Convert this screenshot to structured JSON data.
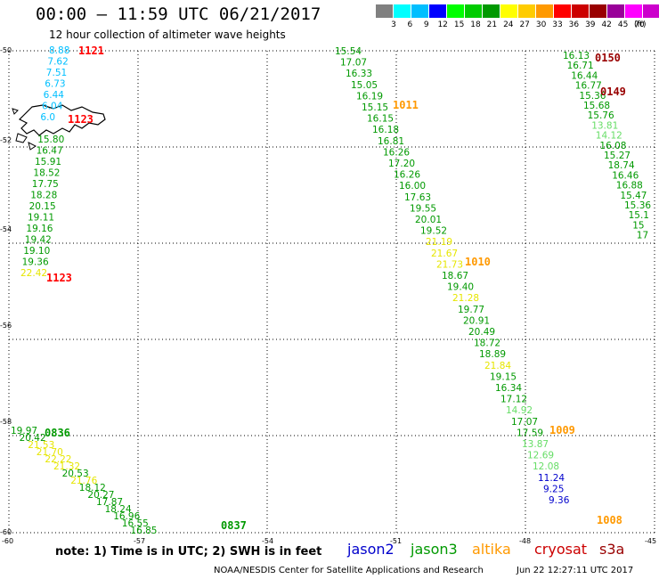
{
  "header": {
    "title": "00:00 – 11:59 UTC 06/21/2017",
    "subtitle": "12 hour collection of altimeter wave heights"
  },
  "legend": {
    "colors": [
      "#808080",
      "#00ffff",
      "#00bfff",
      "#0000ff",
      "#00ff00",
      "#00cc00",
      "#009900",
      "#ffff00",
      "#ffcc00",
      "#ff9900",
      "#ff0000",
      "#cc0000",
      "#990000",
      "#990099",
      "#ff00ff",
      "#cc00cc",
      "#000000"
    ],
    "labels": [
      "3",
      "6",
      "9",
      "12",
      "15",
      "18",
      "21",
      "24",
      "27",
      "30",
      "33",
      "36",
      "39",
      "42",
      "45",
      "70"
    ],
    "unit": "(ft)"
  },
  "axes": {
    "x_ticks": [
      "-60",
      "-57",
      "-54",
      "-51",
      "-48",
      "-45"
    ],
    "y_ticks": [
      "-50",
      "-52",
      "-54",
      "-56",
      "-58",
      "-60"
    ],
    "xlim": [
      -60,
      -45
    ],
    "ylim": [
      -60,
      -50
    ]
  },
  "tracks": [
    {
      "points": [
        {
          "v": "8.88",
          "c": "#00bfff"
        },
        {
          "v": "7.62",
          "c": "#00bfff"
        },
        {
          "v": "7.51",
          "c": "#00bfff"
        },
        {
          "v": "6.73",
          "c": "#00bfff"
        },
        {
          "v": "6.44",
          "c": "#00bfff"
        },
        {
          "v": "6.04",
          "c": "#00bfff"
        },
        {
          "v": "6.0",
          "c": "#00bfff"
        },
        {
          "v": "",
          "c": "#000"
        },
        {
          "v": "15.80",
          "c": "#009900"
        },
        {
          "v": "16.47",
          "c": "#009900"
        },
        {
          "v": "15.91",
          "c": "#009900"
        },
        {
          "v": "18.52",
          "c": "#009900"
        },
        {
          "v": "17.75",
          "c": "#009900"
        },
        {
          "v": "18.28",
          "c": "#009900"
        },
        {
          "v": "20.15",
          "c": "#009900"
        },
        {
          "v": "19.11",
          "c": "#009900"
        },
        {
          "v": "19.16",
          "c": "#009900"
        },
        {
          "v": "19.42",
          "c": "#009900"
        },
        {
          "v": "19.10",
          "c": "#009900"
        },
        {
          "v": "19.36",
          "c": "#009900"
        },
        {
          "v": "22.42",
          "c": "#e6e600"
        }
      ]
    },
    {
      "points": [
        {
          "v": "15.54",
          "c": "#009900"
        },
        {
          "v": "17.07",
          "c": "#009900"
        },
        {
          "v": "16.33",
          "c": "#009900"
        },
        {
          "v": "15.05",
          "c": "#009900"
        },
        {
          "v": "16.19",
          "c": "#009900"
        },
        {
          "v": "15.15",
          "c": "#009900"
        },
        {
          "v": "16.15",
          "c": "#009900"
        },
        {
          "v": "16.18",
          "c": "#009900"
        },
        {
          "v": "16.81",
          "c": "#009900"
        },
        {
          "v": "16.26",
          "c": "#009900"
        },
        {
          "v": "17.20",
          "c": "#009900"
        },
        {
          "v": "16.26",
          "c": "#009900"
        },
        {
          "v": "16.00",
          "c": "#009900"
        },
        {
          "v": "17.63",
          "c": "#009900"
        },
        {
          "v": "19.55",
          "c": "#009900"
        },
        {
          "v": "20.01",
          "c": "#009900"
        },
        {
          "v": "19.52",
          "c": "#009900"
        },
        {
          "v": "21.19",
          "c": "#e6e600"
        },
        {
          "v": "21.67",
          "c": "#e6e600"
        },
        {
          "v": "21.73",
          "c": "#e6e600"
        },
        {
          "v": "18.67",
          "c": "#009900"
        },
        {
          "v": "19.40",
          "c": "#009900"
        },
        {
          "v": "21.28",
          "c": "#e6e600"
        },
        {
          "v": "19.77",
          "c": "#009900"
        },
        {
          "v": "20.91",
          "c": "#009900"
        },
        {
          "v": "20.49",
          "c": "#009900"
        },
        {
          "v": "18.72",
          "c": "#009900"
        },
        {
          "v": "18.89",
          "c": "#009900"
        },
        {
          "v": "21.84",
          "c": "#e6e600"
        },
        {
          "v": "19.15",
          "c": "#009900"
        },
        {
          "v": "16.34",
          "c": "#009900"
        },
        {
          "v": "17.12",
          "c": "#009900"
        },
        {
          "v": "14.92",
          "c": "#66dd66"
        },
        {
          "v": "17.07",
          "c": "#009900"
        },
        {
          "v": "17.59",
          "c": "#009900"
        },
        {
          "v": "13.87",
          "c": "#66dd66"
        },
        {
          "v": "12.69",
          "c": "#66dd66"
        },
        {
          "v": "12.08",
          "c": "#66dd66"
        },
        {
          "v": "11.24",
          "c": "#0000cc"
        },
        {
          "v": "9.25",
          "c": "#0000cc"
        },
        {
          "v": "9.36",
          "c": "#0000cc"
        }
      ]
    },
    {
      "points": [
        {
          "v": "16.13",
          "c": "#009900"
        },
        {
          "v": "16.71",
          "c": "#009900"
        },
        {
          "v": "16.44",
          "c": "#009900"
        },
        {
          "v": "16.77",
          "c": "#009900"
        },
        {
          "v": "15.36",
          "c": "#009900"
        },
        {
          "v": "15.68",
          "c": "#009900"
        },
        {
          "v": "15.76",
          "c": "#009900"
        },
        {
          "v": "13.81",
          "c": "#66dd66"
        },
        {
          "v": "14.12",
          "c": "#66dd66"
        },
        {
          "v": "16.08",
          "c": "#009900"
        },
        {
          "v": "15.27",
          "c": "#009900"
        },
        {
          "v": "18.74",
          "c": "#009900"
        },
        {
          "v": "16.46",
          "c": "#009900"
        },
        {
          "v": "16.88",
          "c": "#009900"
        },
        {
          "v": "15.47",
          "c": "#009900"
        },
        {
          "v": "15.36",
          "c": "#009900"
        },
        {
          "v": "15.1",
          "c": "#009900"
        },
        {
          "v": "15",
          "c": "#009900"
        },
        {
          "v": "17",
          "c": "#009900"
        }
      ]
    },
    {
      "points": [
        {
          "v": "19.97",
          "c": "#009900"
        },
        {
          "v": "20.42",
          "c": "#009900"
        },
        {
          "v": "21.53",
          "c": "#e6e600"
        },
        {
          "v": "21.70",
          "c": "#e6e600"
        },
        {
          "v": "22.22",
          "c": "#e6e600"
        },
        {
          "v": "21.32",
          "c": "#e6e600"
        },
        {
          "v": "20.53",
          "c": "#009900"
        },
        {
          "v": "21.76",
          "c": "#e6e600"
        },
        {
          "v": "18.12",
          "c": "#009900"
        },
        {
          "v": "20.27",
          "c": "#009900"
        },
        {
          "v": "17.87",
          "c": "#009900"
        },
        {
          "v": "18.24",
          "c": "#009900"
        },
        {
          "v": "16.96",
          "c": "#009900"
        },
        {
          "v": "16.55",
          "c": "#009900"
        },
        {
          "v": "16.85",
          "c": "#009900"
        }
      ]
    }
  ],
  "time_labels": [
    {
      "t": "1121",
      "c": "#ff0000"
    },
    {
      "t": "1123",
      "c": "#ff0000"
    },
    {
      "t": "1123",
      "c": "#ff0000"
    },
    {
      "t": "1011",
      "c": "#ff9900"
    },
    {
      "t": "1010",
      "c": "#ff9900"
    },
    {
      "t": "1009",
      "c": "#ff9900"
    },
    {
      "t": "1008",
      "c": "#ff9900"
    },
    {
      "t": "0150",
      "c": "#990000"
    },
    {
      "t": "0149",
      "c": "#990000"
    },
    {
      "t": "0836",
      "c": "#009900"
    },
    {
      "t": "0837",
      "c": "#009900"
    }
  ],
  "note": "note: 1) Time is in UTC; 2) SWH is in feet",
  "satellites": [
    {
      "name": "jason2",
      "c": "#0000cc"
    },
    {
      "name": "jason3",
      "c": "#009900"
    },
    {
      "name": "altika",
      "c": "#ff9900"
    },
    {
      "name": "cryosat",
      "c": "#cc0000"
    },
    {
      "name": "s3a",
      "c": "#990000"
    }
  ],
  "footer": {
    "left": "NOAA/NESDIS Center for Satellite Applications and Research",
    "right": "Jun 22 12:27:11 UTC 2017"
  }
}
